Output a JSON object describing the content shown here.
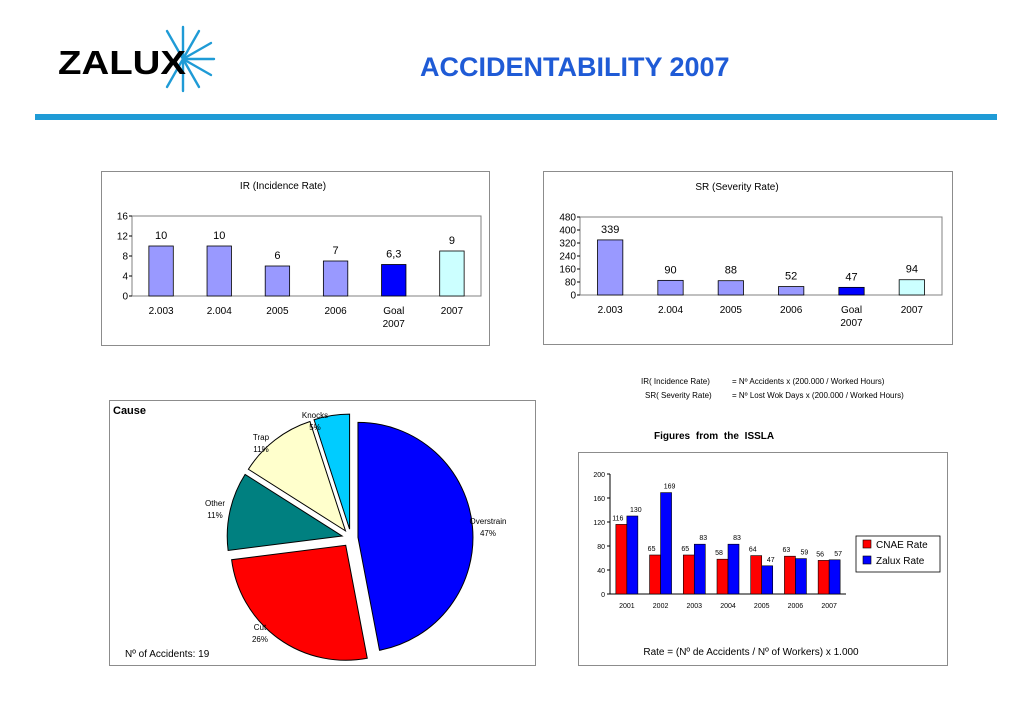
{
  "header": {
    "logo_text": "ZALUX",
    "title": "ACCIDENTABILITY 2007",
    "colors": {
      "title": "#1f5bd6",
      "rule": "#1f9bd6",
      "logo_accent": "#1f9bd6"
    }
  },
  "formulas": {
    "ir_label": "IR( Incidence Rate)",
    "ir_formula": "= Nº Accidents x (200.000 / Worked Hours)",
    "sr_label": "SR( Severity Rate)",
    "sr_formula": "= Nº Lost Wok Days x (200.000 / Worked Hours)"
  },
  "issla_title": "Figures  from  the  ISSLA",
  "chart_data": [
    {
      "id": "ir",
      "type": "bar",
      "title": "IR (Incidence Rate)",
      "categories": [
        "2.003",
        "2.004",
        "2005",
        "2006",
        "Goal 2007",
        "2007"
      ],
      "values": [
        10,
        10,
        6,
        7,
        6.3,
        9
      ],
      "value_labels": [
        "10",
        "10",
        "6",
        "7",
        "6,3",
        "9"
      ],
      "bar_colors": [
        "#9999ff",
        "#9999ff",
        "#9999ff",
        "#9999ff",
        "#0000ff",
        "#ccffff"
      ],
      "ylim": [
        0,
        16
      ],
      "yticks": [
        "0",
        "4",
        "8",
        "12",
        "16"
      ],
      "grid": false
    },
    {
      "id": "sr",
      "type": "bar",
      "title": "SR (Severity Rate)",
      "categories": [
        "2.003",
        "2.004",
        "2005",
        "2006",
        "Goal 2007",
        "2007"
      ],
      "values": [
        339,
        90,
        88,
        52,
        47,
        94
      ],
      "value_labels": [
        "339",
        "90",
        "88",
        "52",
        "47",
        "94"
      ],
      "bar_colors": [
        "#9999ff",
        "#9999ff",
        "#9999ff",
        "#9999ff",
        "#0000ff",
        "#ccffff"
      ],
      "ylim": [
        0,
        480
      ],
      "yticks": [
        "0",
        "80",
        "160",
        "240",
        "320",
        "400",
        "480"
      ],
      "grid": false
    },
    {
      "id": "cause",
      "type": "pie",
      "title": "Cause",
      "slices": [
        {
          "label": "Overstrain",
          "percent": 47,
          "percent_label": "47%",
          "color": "#0000ff"
        },
        {
          "label": "Cut",
          "percent": 26,
          "percent_label": "26%",
          "color": "#ff0000"
        },
        {
          "label": "Other",
          "percent": 11,
          "percent_label": "11%",
          "color": "#008080"
        },
        {
          "label": "Trap",
          "percent": 11,
          "percent_label": "11%",
          "color": "#ffffcc"
        },
        {
          "label": "Knocks",
          "percent": 5,
          "percent_label": "5%",
          "color": "#00ccff"
        }
      ],
      "footnote": "Nº of Accidents: 19"
    },
    {
      "id": "issla",
      "type": "bar",
      "categories": [
        "2001",
        "2002",
        "2003",
        "2004",
        "2005",
        "2006",
        "2007"
      ],
      "series": [
        {
          "name": "CNAE Rate",
          "color": "#ff0000",
          "values": [
            116,
            65,
            65,
            58,
            64,
            63,
            56
          ]
        },
        {
          "name": "Zalux Rate",
          "color": "#0000ff",
          "values": [
            130,
            169,
            83,
            83,
            47,
            59,
            57
          ]
        }
      ],
      "ylim": [
        0,
        200
      ],
      "yticks": [
        "0",
        "40",
        "80",
        "120",
        "160",
        "200"
      ],
      "legend": "right",
      "grid": false,
      "footnote": "Rate = (Nº de Accidents / Nº of Workers) x 1.000"
    }
  ]
}
